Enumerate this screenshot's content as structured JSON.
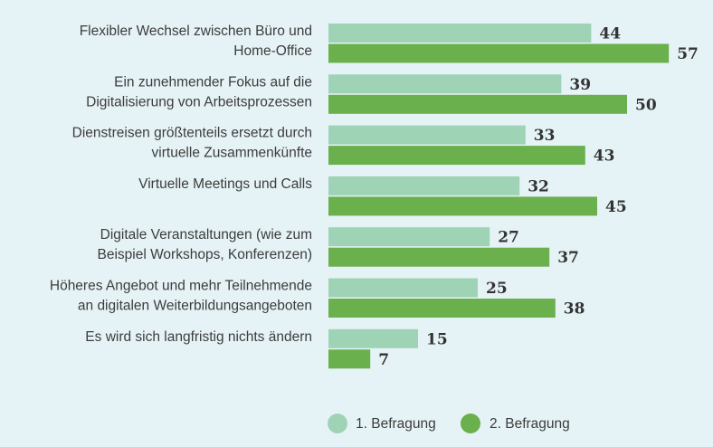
{
  "chart_data": {
    "type": "bar",
    "orientation": "horizontal",
    "categories": [
      [
        "Flexibler Wechsel zwischen Büro und",
        "Home-Office"
      ],
      [
        "Ein zunehmender Fokus auf die",
        "Digitalisierung von Arbeitsprozessen"
      ],
      [
        "Dienstreisen größtenteils ersetzt durch",
        "virtuelle Zusammenkünfte"
      ],
      [
        "Virtuelle Meetings und Calls"
      ],
      [
        "Digitale Veranstaltungen (wie zum",
        "Beispiel Workshops, Konferenzen)"
      ],
      [
        "Höheres Angebot und mehr Teilnehmende",
        "an digitalen Weiterbildungsangeboten"
      ],
      [
        "Es wird sich langfristig nichts ändern"
      ]
    ],
    "series": [
      {
        "name": "1. Befragung",
        "color": "#9fd3b6",
        "values": [
          44,
          39,
          33,
          32,
          27,
          25,
          15
        ]
      },
      {
        "name": "2. Befragung",
        "color": "#6ab04c",
        "values": [
          57,
          50,
          43,
          45,
          37,
          38,
          7
        ]
      }
    ],
    "legend_position": "bottom-right",
    "grid": false
  }
}
